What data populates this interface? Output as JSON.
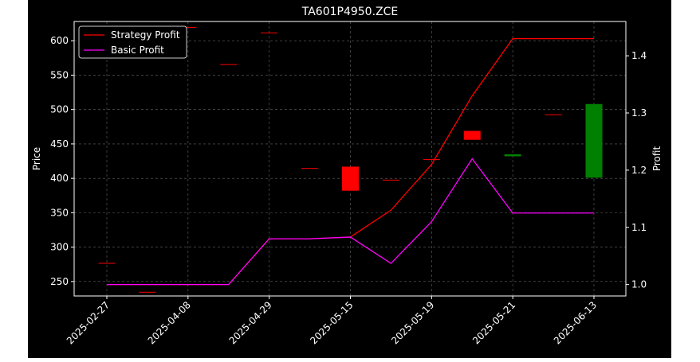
{
  "chart_data": {
    "type": "candlestick+line",
    "title": "TA601P4950.ZCE",
    "xlabel": "",
    "ylabel_left": "Price",
    "ylabel_right": "Profit",
    "ylim_left": [
      229,
      628
    ],
    "ylim_right": [
      0.98,
      1.46
    ],
    "yticks_left": [
      250,
      300,
      350,
      400,
      450,
      500,
      550,
      600
    ],
    "yticks_right": [
      1.0,
      1.1,
      1.2,
      1.3,
      1.4
    ],
    "ytick_right_labels": [
      "1.0",
      "1.1",
      "1.2",
      "1.3",
      "1.4"
    ],
    "x_tick_labels": [
      "2025-02-27",
      "2025-04-08",
      "2025-04-29",
      "2025-05-15",
      "2025-05-19",
      "2025-05-21",
      "2025-06-13"
    ],
    "grid": true,
    "legend_position": "upper-left",
    "colors": {
      "background": "#000000",
      "up": "#008000",
      "down": "#ff0000",
      "strategy": "#ff0000",
      "basic": "#ff00ff",
      "text": "#ffffff",
      "grid": "#808080"
    },
    "candles": [
      {
        "x": 0.0,
        "open": 277,
        "close": 277
      },
      {
        "x": 0.5,
        "open": 235,
        "close": 235
      },
      {
        "x": 1.0,
        "open": 620,
        "close": 620
      },
      {
        "x": 1.5,
        "open": 566,
        "close": 566
      },
      {
        "x": 2.0,
        "open": 612,
        "close": 612
      },
      {
        "x": 2.5,
        "open": 415,
        "close": 415
      },
      {
        "x": 3.0,
        "open": 417,
        "close": 382
      },
      {
        "x": 3.5,
        "open": 398,
        "close": 398
      },
      {
        "x": 4.0,
        "open": 428,
        "close": 428
      },
      {
        "x": 4.5,
        "open": 469,
        "close": 456
      },
      {
        "x": 5.0,
        "open": 432,
        "close": 435
      },
      {
        "x": 5.5,
        "open": 493,
        "close": 493
      },
      {
        "x": 6.0,
        "open": 401,
        "close": 508
      }
    ],
    "series": [
      {
        "name": "Strategy Profit",
        "color": "#ff0000",
        "x": [
          0,
          0.5,
          1,
          1.5,
          2,
          2.5,
          3,
          3.5,
          4,
          4.5,
          5,
          5.5,
          6
        ],
        "values": [
          1.0,
          1.0,
          1.0,
          1.0,
          1.08,
          1.08,
          1.083,
          1.13,
          1.21,
          1.33,
          1.43,
          1.43,
          1.43
        ]
      },
      {
        "name": "Basic Profit",
        "color": "#ff00ff",
        "x": [
          0,
          0.5,
          1,
          1.5,
          2,
          2.5,
          3,
          3.5,
          4,
          4.5,
          5,
          5.5,
          6
        ],
        "values": [
          1.0,
          1.0,
          1.0,
          1.0,
          1.08,
          1.08,
          1.083,
          1.037,
          1.11,
          1.22,
          1.125,
          1.125,
          1.125
        ]
      }
    ]
  }
}
